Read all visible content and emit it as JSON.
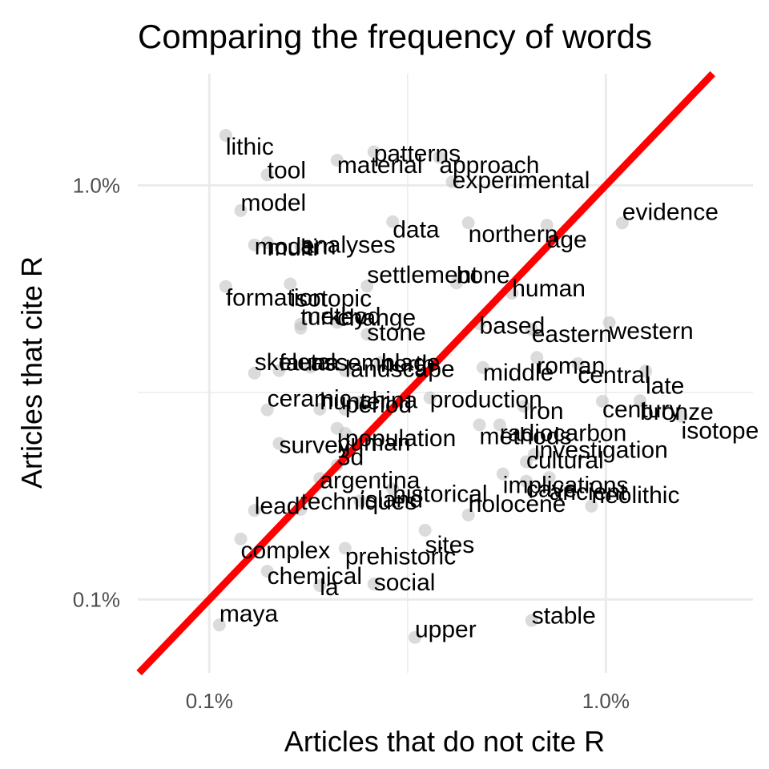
{
  "chart_data": {
    "type": "scatter",
    "title": "Comparing the frequency of words",
    "xlabel": "Articles that do not cite R",
    "ylabel": "Articles that cite R",
    "x_scale": "log10",
    "y_scale": "log10",
    "xlim": [
      0.00066,
      0.0235
    ],
    "ylim": [
      0.000665,
      0.0186
    ],
    "x_ticks": [
      {
        "value": 0.001,
        "label": "0.1%"
      },
      {
        "value": 0.01,
        "label": "1.0%"
      }
    ],
    "y_ticks": [
      {
        "value": 0.001,
        "label": "0.1%"
      },
      {
        "value": 0.01,
        "label": "1.0%"
      }
    ],
    "grid": true,
    "reference_line": {
      "type": "y=x",
      "color": "#ff0000"
    },
    "point_color": "#bdbdbd",
    "points": [
      {
        "x": 0.00106,
        "y": 0.000868,
        "label": "maya"
      },
      {
        "x": 0.0033,
        "y": 0.00081,
        "label": "upper"
      },
      {
        "x": 0.0065,
        "y": 0.00089,
        "label": "stable"
      },
      {
        "x": 0.0026,
        "y": 0.00109,
        "label": "social"
      },
      {
        "x": 0.0019,
        "y": 0.00108,
        "label": "la"
      },
      {
        "x": 0.0014,
        "y": 0.00117,
        "label": "chemical"
      },
      {
        "x": 0.0022,
        "y": 0.00133,
        "label": "prehistoric"
      },
      {
        "x": 0.0012,
        "y": 0.0014,
        "label": "complex"
      },
      {
        "x": 0.0035,
        "y": 0.00147,
        "label": "sites"
      },
      {
        "x": 0.0045,
        "y": 0.0016,
        "label": "holocene"
      },
      {
        "x": 0.0017,
        "y": 0.00165,
        "label": "techniques"
      },
      {
        "x": 0.0013,
        "y": 0.00164,
        "label": "lead"
      },
      {
        "x": 0.0024,
        "y": 0.00173,
        "label": "island"
      },
      {
        "x": 0.0019,
        "y": 0.00196,
        "label": "argentina"
      },
      {
        "x": 0.0029,
        "y": 0.00185,
        "label": "historical"
      },
      {
        "x": 0.0063,
        "y": 0.00193,
        "label": "cave"
      },
      {
        "x": 0.0055,
        "y": 0.00201,
        "label": "implications"
      },
      {
        "x": 0.0072,
        "y": 0.00197,
        "label": "ancient"
      },
      {
        "x": 0.0092,
        "y": 0.00168,
        "label": "neolithic"
      },
      {
        "x": 0.0021,
        "y": 0.00211,
        "label": "3d"
      },
      {
        "x": 0.0066,
        "y": 0.00224,
        "label": "investigation"
      },
      {
        "x": 0.0063,
        "y": 0.00215,
        "label": "cultural"
      },
      {
        "x": 0.0015,
        "y": 0.00238,
        "label": "survey"
      },
      {
        "x": 0.0022,
        "y": 0.00252,
        "label": "population"
      },
      {
        "x": 0.0054,
        "y": 0.00264,
        "label": "radiocarbon"
      },
      {
        "x": 0.0048,
        "y": 0.00264,
        "label": "methods"
      },
      {
        "x": 0.0021,
        "y": 0.00259,
        "label": "human"
      },
      {
        "x": 0.0014,
        "y": 0.00287,
        "label": "ceramic"
      },
      {
        "x": 0.0019,
        "y": 0.00288,
        "label": "hunter"
      },
      {
        "x": 0.0022,
        "y": 0.00288,
        "label": "period"
      },
      {
        "x": 0.0024,
        "y": 0.003,
        "label": "china"
      },
      {
        "x": 0.0036,
        "y": 0.00307,
        "label": "production"
      },
      {
        "x": 0.0062,
        "y": 0.00293,
        "label": "iron"
      },
      {
        "x": 0.0098,
        "y": 0.00301,
        "label": "century"
      },
      {
        "x": 0.0122,
        "y": 0.00302,
        "label": "bronze"
      },
      {
        "x": 0.0155,
        "y": 0.00277,
        "label": "isotope"
      },
      {
        "x": 0.0013,
        "y": 0.00352,
        "label": "skeletal"
      },
      {
        "x": 0.0015,
        "y": 0.00357,
        "label": "fauna"
      },
      {
        "x": 0.0018,
        "y": 0.00364,
        "label": "assemblage"
      },
      {
        "x": 0.0022,
        "y": 0.00357,
        "label": "landscape"
      },
      {
        "x": 0.0027,
        "y": 0.00374,
        "label": "north"
      },
      {
        "x": 0.0049,
        "y": 0.00363,
        "label": "middle"
      },
      {
        "x": 0.0067,
        "y": 0.00384,
        "label": "roman"
      },
      {
        "x": 0.0085,
        "y": 0.00371,
        "label": "central"
      },
      {
        "x": 0.0126,
        "y": 0.00356,
        "label": "late"
      },
      {
        "x": 0.0017,
        "y": 0.00452,
        "label": "turkey"
      },
      {
        "x": 0.0017,
        "y": 0.00462,
        "label": "method"
      },
      {
        "x": 0.0021,
        "y": 0.00467,
        "label": "change"
      },
      {
        "x": 0.0025,
        "y": 0.00437,
        "label": "stone"
      },
      {
        "x": 0.0048,
        "y": 0.00463,
        "label": "based"
      },
      {
        "x": 0.0065,
        "y": 0.00449,
        "label": "eastern"
      },
      {
        "x": 0.0102,
        "y": 0.00466,
        "label": "western"
      },
      {
        "x": 0.0011,
        "y": 0.0057,
        "label": "formation"
      },
      {
        "x": 0.0016,
        "y": 0.00578,
        "label": "isotopic"
      },
      {
        "x": 0.0025,
        "y": 0.00571,
        "label": "settlement"
      },
      {
        "x": 0.0042,
        "y": 0.00581,
        "label": "bone"
      },
      {
        "x": 0.0058,
        "y": 0.00549,
        "label": "human"
      },
      {
        "x": 0.0017,
        "y": 0.00712,
        "label": "analyses"
      },
      {
        "x": 0.0013,
        "y": 0.00718,
        "label": "modern"
      },
      {
        "x": 0.0014,
        "y": 0.00727,
        "label": "multi"
      },
      {
        "x": 0.0029,
        "y": 0.00817,
        "label": "data"
      },
      {
        "x": 0.0045,
        "y": 0.00812,
        "label": "northern"
      },
      {
        "x": 0.0071,
        "y": 0.00801,
        "label": "age"
      },
      {
        "x": 0.011,
        "y": 0.00811,
        "label": "evidence"
      },
      {
        "x": 0.0012,
        "y": 0.00869,
        "label": "model"
      },
      {
        "x": 0.0014,
        "y": 0.0106,
        "label": "tool"
      },
      {
        "x": 0.0041,
        "y": 0.0102,
        "label": "experimental"
      },
      {
        "x": 0.0026,
        "y": 0.01205,
        "label": "patterns"
      },
      {
        "x": 0.0021,
        "y": 0.0115,
        "label": "material"
      },
      {
        "x": 0.0038,
        "y": 0.0117,
        "label": "approach"
      },
      {
        "x": 0.0011,
        "y": 0.0132,
        "label": "lithic"
      }
    ],
    "label_positions_note": ""
  }
}
